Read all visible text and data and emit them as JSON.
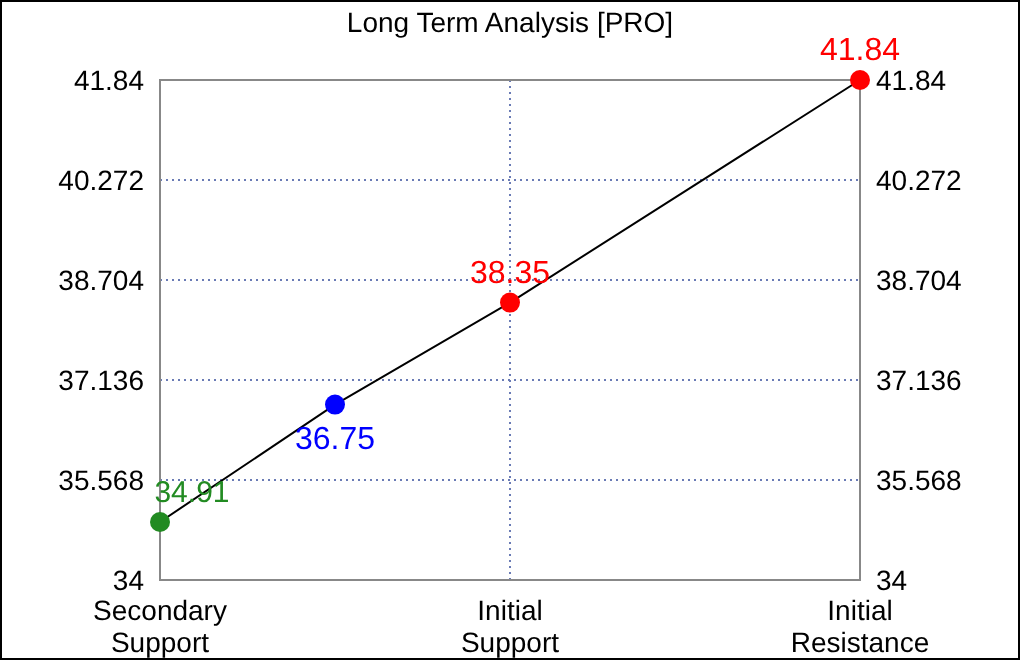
{
  "chart_data": {
    "type": "line",
    "title": "Long Term Analysis [PRO]",
    "categories": [
      "Secondary Support",
      null,
      "Initial Support",
      null,
      "Initial Resistance"
    ],
    "values": [
      34.91,
      36.75,
      38.35,
      null,
      41.84
    ],
    "color": "#000000",
    "colors": [
      "#228b22",
      "#0000ff",
      "#ff0000",
      null,
      "#ff0000"
    ],
    "ylim": [
      34,
      41.84
    ],
    "yticks": [
      34,
      35.568,
      37.136,
      38.704,
      40.272,
      41.84
    ],
    "y2lim": [
      34,
      41.84
    ],
    "y2ticks": [
      34,
      35.568,
      37.136,
      38.704,
      40.272,
      41.84
    ],
    "data_labels": true,
    "grid": true,
    "marker": "circle"
  }
}
